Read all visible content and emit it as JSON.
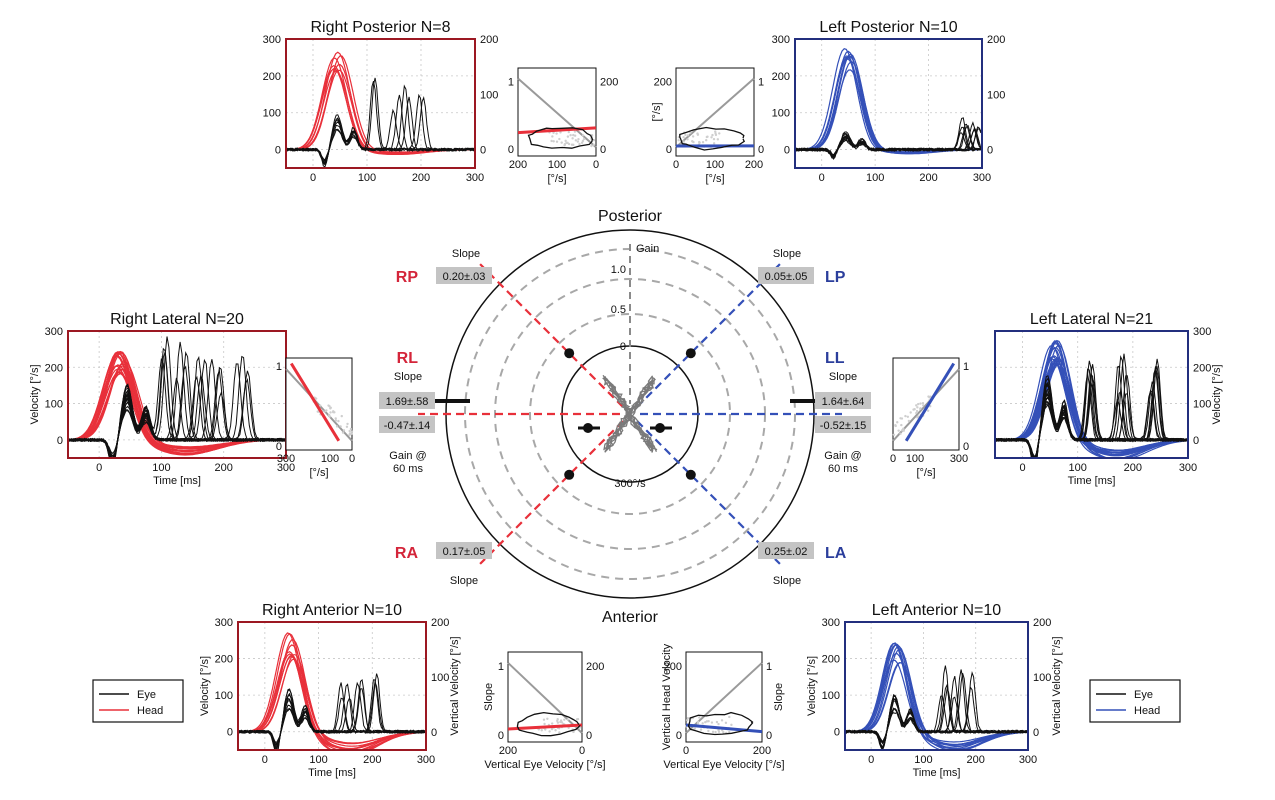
{
  "colors": {
    "right": "#e8303a",
    "left": "#3450b8",
    "eye": "#111111",
    "head_grey": "#9a9a9a",
    "right_frame": "#9c1822",
    "left_frame": "#232f7e"
  },
  "legend": {
    "eye": "Eye",
    "head": "Head"
  },
  "polar": {
    "posterior_label": "Posterior",
    "anterior_label": "Anterior",
    "gain_label": "Gain",
    "ring_labels": [
      "1.0",
      "0.5",
      "0"
    ],
    "velocity_label": "300°/s"
  },
  "canals": {
    "RP": {
      "label": "RP",
      "slope_label": "Slope",
      "slope": "0.20±.03"
    },
    "LP": {
      "label": "LP",
      "slope_label": "Slope",
      "slope": "0.05±.05"
    },
    "RL": {
      "label": "RL",
      "slope_label": "Slope",
      "slope": "1.69±.58",
      "gain": "-0.47±.14",
      "gain_label_1": "Gain @",
      "gain_label_2": "60 ms"
    },
    "LL": {
      "label": "LL",
      "slope_label": "Slope",
      "slope": "1.64±.64",
      "gain": "-0.52±.15",
      "gain_label_1": "Gain @",
      "gain_label_2": "60 ms"
    },
    "RA": {
      "label": "RA",
      "slope_label": "Slope",
      "slope": "0.17±.05"
    },
    "LA": {
      "label": "LA",
      "slope_label": "Slope",
      "slope": "0.25±.02"
    }
  },
  "chart_data": [
    {
      "type": "line",
      "title": "Right Posterior",
      "n_label": "N=8",
      "xlabel": "",
      "ylabel": "",
      "y2label": "",
      "xlim": [
        -50,
        300
      ],
      "ylim": [
        -50,
        300
      ],
      "y2lim": [
        -33,
        200
      ],
      "xticks": [
        0,
        100,
        200,
        300
      ],
      "yticks": [
        0,
        100,
        200,
        300
      ],
      "y2ticks": [
        0,
        100,
        200
      ],
      "series": [
        {
          "role": "head",
          "n": 8,
          "peak_time": 45,
          "peak": 255,
          "undershoot": -10
        },
        {
          "role": "eye",
          "n": 8,
          "peak": 80,
          "saccade_times": [
            120,
            150,
            175,
            200
          ],
          "saccade_peak": 180
        }
      ]
    },
    {
      "type": "line",
      "title": "Left Posterior",
      "n_label": "N=10",
      "xlabel": "",
      "ylabel": "",
      "y2label": "",
      "xlim": [
        -50,
        300
      ],
      "ylim": [
        -50,
        300
      ],
      "y2lim": [
        -33,
        200
      ],
      "xticks": [
        0,
        100,
        200,
        300
      ],
      "yticks": [
        0,
        100,
        200,
        300
      ],
      "y2ticks": [
        0,
        100,
        200
      ],
      "series": [
        {
          "role": "head",
          "n": 10,
          "peak_time": 50,
          "peak": 255,
          "undershoot": -10
        },
        {
          "role": "eye",
          "n": 10,
          "peak": 40,
          "saccade_times": [
            265,
            285
          ],
          "saccade_peak": 80
        }
      ]
    },
    {
      "type": "line",
      "title": "Right Lateral",
      "n_label": "N=20",
      "xlabel": "Time [ms]",
      "ylabel": "Velocity [°/s]",
      "y2label": "",
      "xlim": [
        -50,
        300
      ],
      "ylim": [
        -50,
        300
      ],
      "xticks": [
        0,
        100,
        200,
        300
      ],
      "yticks": [
        0,
        100,
        200,
        300
      ],
      "y2ticks": [],
      "series": [
        {
          "role": "head",
          "n": 20,
          "peak_time": 35,
          "peak": 220,
          "undershoot": -30
        },
        {
          "role": "eye",
          "n": 20,
          "peak": 130,
          "saccade_times": [
            100,
            130,
            160,
            190,
            230
          ],
          "saccade_peak": 260
        }
      ]
    },
    {
      "type": "line",
      "title": "Left Lateral",
      "n_label": "N=21",
      "xlabel": "Time [ms]",
      "ylabel": "",
      "y2label": "Velocity [°/s]",
      "xlim": [
        -50,
        300
      ],
      "ylim": [
        -50,
        300
      ],
      "xticks": [
        0,
        100,
        200,
        300
      ],
      "yticks": [],
      "y2ticks": [
        0,
        100,
        200,
        300
      ],
      "series": [
        {
          "role": "head",
          "n": 21,
          "peak_time": 60,
          "peak": 250,
          "undershoot": -40
        },
        {
          "role": "eye",
          "n": 21,
          "peak": 150,
          "saccade_times": [
            120,
            180,
            240
          ],
          "saccade_peak": 220
        }
      ]
    },
    {
      "type": "line",
      "title": "Right Anterior",
      "n_label": "N=10",
      "xlabel": "Time [ms]",
      "ylabel": "Velocity [°/s]",
      "y2label": "Vertical Velocity [°/s]",
      "xlim": [
        -50,
        300
      ],
      "ylim": [
        -50,
        300
      ],
      "y2lim": [
        -33,
        200
      ],
      "xticks": [
        0,
        100,
        200,
        300
      ],
      "yticks": [
        0,
        100,
        200,
        300
      ],
      "y2ticks": [
        0,
        100,
        200
      ],
      "series": [
        {
          "role": "head",
          "n": 10,
          "peak_time": 50,
          "peak": 245,
          "undershoot": -50
        },
        {
          "role": "eye",
          "n": 10,
          "peak": 100,
          "saccade_times": [
            150,
            180,
            210
          ],
          "saccade_peak": 180
        }
      ]
    },
    {
      "type": "line",
      "title": "Left Anterior",
      "n_label": "N=10",
      "xlabel": "Time [ms]",
      "ylabel": "Velocity [°/s]",
      "y2label": "Vertical Velocity [°/s]",
      "xlim": [
        -50,
        300
      ],
      "ylim": [
        -50,
        300
      ],
      "y2lim": [
        -33,
        200
      ],
      "xticks": [
        0,
        100,
        200,
        300
      ],
      "yticks": [
        0,
        100,
        200,
        300
      ],
      "y2ticks": [
        0,
        100,
        200
      ],
      "series": [
        {
          "role": "head",
          "n": 10,
          "peak_time": 50,
          "peak": 230,
          "undershoot": -40
        },
        {
          "role": "eye",
          "n": 10,
          "peak": 90,
          "saccade_times": [
            140,
            165,
            185
          ],
          "saccade_peak": 170
        }
      ]
    },
    {
      "type": "scatter",
      "side": "right",
      "canal": "RP",
      "xlabel": "[°/s]",
      "ylabel": "",
      "y2label": "",
      "xlim": [
        200,
        0
      ],
      "ylim": [
        -0.1,
        1.2
      ],
      "y2lim": [
        -20,
        240
      ],
      "xticks": [
        200,
        100,
        0
      ],
      "yticks": [
        0,
        1
      ],
      "y2ticks": [
        0,
        200
      ],
      "fit_slope": 0.2,
      "fit_y0": 0.22
    },
    {
      "type": "scatter",
      "side": "left",
      "canal": "LP",
      "xlabel": "[°/s]",
      "ylabel": "[°/s]",
      "y2label": "",
      "xlim": [
        0,
        200
      ],
      "ylim": [
        -20,
        240
      ],
      "y2lim": [
        -0.1,
        1.2
      ],
      "xticks": [
        0,
        100,
        200
      ],
      "yticks": [
        0,
        200
      ],
      "y2ticks": [
        0,
        1
      ],
      "fit_slope": 0.05,
      "fit_y0": 0.02
    },
    {
      "type": "scatter",
      "side": "right",
      "canal": "RL",
      "xlabel": "[°/s]",
      "ylabel": "",
      "y2label": "",
      "xlim": [
        300,
        0
      ],
      "ylim": [
        -0.05,
        1.1
      ],
      "xticks": [
        300,
        100,
        0
      ],
      "yticks": [
        0,
        1
      ],
      "y2ticks": [],
      "fit_slope": 1.69,
      "fit_y0": -0.1
    },
    {
      "type": "scatter",
      "side": "left",
      "canal": "LL",
      "xlabel": "[°/s]",
      "ylabel": "",
      "y2label": "",
      "xlim": [
        0,
        300
      ],
      "ylim": [
        -0.05,
        1.1
      ],
      "y2lim": [
        -0.05,
        1.1
      ],
      "xticks": [
        0,
        100,
        300
      ],
      "yticks": [],
      "y2ticks": [
        0,
        1
      ],
      "fit_slope": 1.64,
      "fit_y0": -0.1
    },
    {
      "type": "scatter",
      "side": "right",
      "canal": "RA",
      "xlabel": "Vertical Eye Velocity [°/s]",
      "ylabel": "Slope",
      "y2label": "",
      "xlim": [
        200,
        0
      ],
      "ylim": [
        -0.1,
        1.2
      ],
      "y2lim": [
        -20,
        240
      ],
      "xticks": [
        200,
        0
      ],
      "yticks": [
        0,
        1
      ],
      "y2ticks": [
        0,
        200
      ],
      "fit_slope": 0.17,
      "fit_y0": 0.06
    },
    {
      "type": "scatter",
      "side": "left",
      "canal": "LA",
      "xlabel": "Vertical Eye Velocity [°/s]",
      "ylabel": "Vertical Head Velocity",
      "y2label": "Slope",
      "xlim": [
        0,
        200
      ],
      "ylim": [
        -20,
        240
      ],
      "y2lim": [
        -0.1,
        1.2
      ],
      "xticks": [
        0,
        200
      ],
      "yticks": [
        0,
        200
      ],
      "y2ticks": [
        0,
        1
      ],
      "fit_slope": 0.25,
      "fit_y0": 0.02
    }
  ]
}
